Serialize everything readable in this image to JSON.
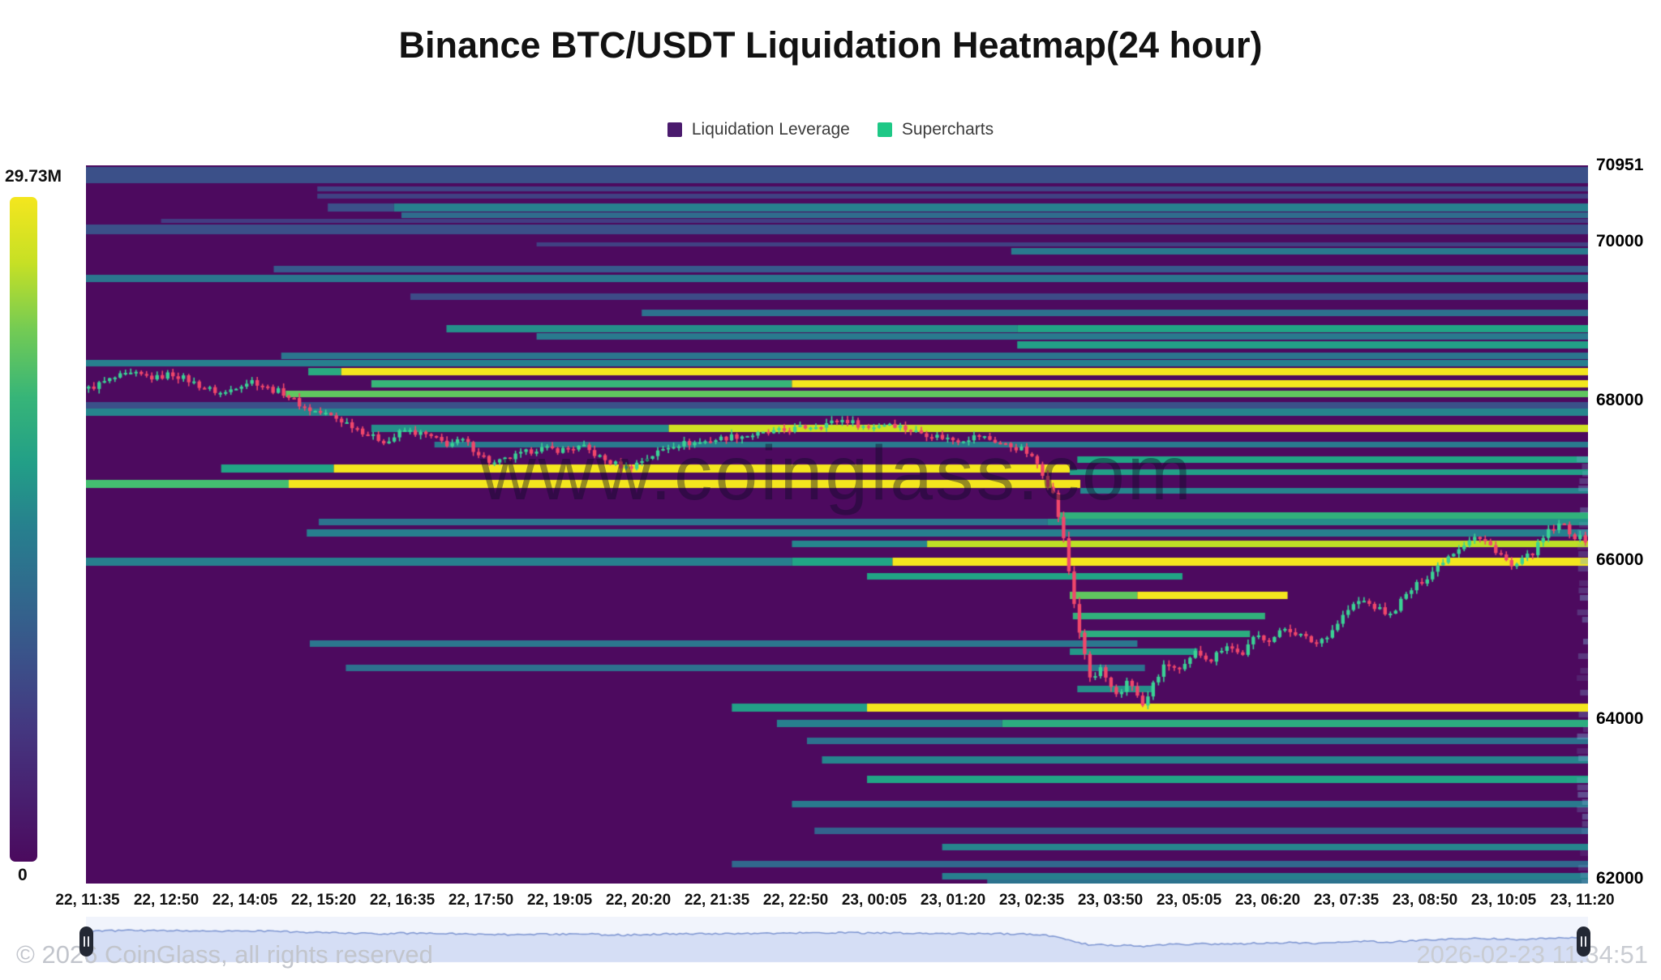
{
  "title": "Binance BTC/USDT Liquidation Heatmap(24 hour)",
  "legend": {
    "items": [
      {
        "label": "Liquidation Leverage",
        "color": "#4a1a6d"
      },
      {
        "label": "Supercharts",
        "color": "#1ec886"
      }
    ]
  },
  "colorbar": {
    "max_label": "29.73M",
    "min_label": "0"
  },
  "watermark": "www.coinglass.com",
  "footer": {
    "copyright": "© 2026 CoinGlass, all rights reserved",
    "timestamp": "2026-02-23 11:34:51"
  },
  "chart_data": {
    "type": "heatmap",
    "title": "Binance BTC/USDT Liquidation Heatmap(24 hour)",
    "x_ticks": [
      "22, 11:35",
      "22, 12:50",
      "22, 14:05",
      "22, 15:20",
      "22, 16:35",
      "22, 17:50",
      "22, 19:05",
      "22, 20:20",
      "22, 21:35",
      "22, 22:50",
      "23, 00:05",
      "23, 01:20",
      "23, 02:35",
      "23, 03:50",
      "23, 05:05",
      "23, 06:20",
      "23, 07:35",
      "23, 08:50",
      "23, 10:05",
      "23, 11:20"
    ],
    "y_ticks": [
      70951,
      70000,
      68000,
      66000,
      64000,
      62000
    ],
    "y_range": [
      61940,
      70951
    ],
    "colorbar_max_millions": 29.73,
    "background_color": "#4d0a5f",
    "colormap_stops": [
      [
        0.0,
        "#4b0a5e"
      ],
      [
        0.18,
        "#46327e"
      ],
      [
        0.35,
        "#365c8d"
      ],
      [
        0.5,
        "#277f8e"
      ],
      [
        0.62,
        "#21a585"
      ],
      [
        0.75,
        "#44bf70"
      ],
      [
        0.88,
        "#bddf26"
      ],
      [
        1.0,
        "#f4e61e"
      ]
    ],
    "candle_up_color": "#3bd295",
    "candle_down_color": "#f1476b",
    "candle_count": 285,
    "bands": [
      {
        "p": 70830,
        "h": 20,
        "s": [
          [
            0,
            0.3
          ]
        ]
      },
      {
        "p": 70660,
        "h": 6,
        "s": [
          [
            0.154,
            0.26
          ]
        ]
      },
      {
        "p": 70560,
        "h": 6,
        "s": [
          [
            0.154,
            0.24
          ]
        ]
      },
      {
        "p": 70420,
        "h": 10,
        "s": [
          [
            0.161,
            0.3
          ],
          [
            0.205,
            0.5
          ]
        ]
      },
      {
        "p": 70330,
        "h": 7,
        "s": [
          [
            0.21,
            0.42
          ]
        ]
      },
      {
        "p": 70250,
        "h": 5,
        "s": [
          [
            0.05,
            0.22
          ]
        ]
      },
      {
        "p": 70150,
        "h": 12,
        "s": [
          [
            0,
            0.3
          ]
        ]
      },
      {
        "p": 69960,
        "h": 5,
        "s": [
          [
            0.3,
            0.24
          ]
        ]
      },
      {
        "p": 69870,
        "h": 8,
        "s": [
          [
            0.616,
            0.48
          ]
        ]
      },
      {
        "p": 69650,
        "h": 8,
        "s": [
          [
            0.125,
            0.34
          ]
        ]
      },
      {
        "p": 69530,
        "h": 9,
        "s": [
          [
            0,
            0.46
          ]
        ]
      },
      {
        "p": 69300,
        "h": 8,
        "s": [
          [
            0.216,
            0.28
          ]
        ]
      },
      {
        "p": 69100,
        "h": 8,
        "s": [
          [
            0.37,
            0.44
          ]
        ]
      },
      {
        "p": 68900,
        "h": 9,
        "s": [
          [
            0.24,
            0.55
          ],
          [
            0.62,
            0.62
          ]
        ]
      },
      {
        "p": 68800,
        "h": 8,
        "s": [
          [
            0.3,
            0.48
          ]
        ]
      },
      {
        "p": 68700,
        "h": 9,
        "s": [
          [
            0.62,
            0.6
          ]
        ]
      },
      {
        "p": 68560,
        "h": 8,
        "s": [
          [
            0.13,
            0.46
          ]
        ]
      },
      {
        "p": 68470,
        "h": 8,
        "s": [
          [
            0,
            0.5
          ]
        ]
      },
      {
        "p": 68360,
        "h": 9,
        "s": [
          [
            0.148,
            0.65
          ],
          [
            0.17,
            1.0
          ]
        ]
      },
      {
        "p": 68210,
        "h": 9,
        "s": [
          [
            0.19,
            0.7
          ],
          [
            0.47,
            1.0
          ]
        ]
      },
      {
        "p": 68080,
        "h": 8,
        "s": [
          [
            0.133,
            0.78
          ]
        ]
      },
      {
        "p": 67940,
        "h": 8,
        "s": [
          [
            0,
            0.3
          ]
        ]
      },
      {
        "p": 67850,
        "h": 9,
        "s": [
          [
            0,
            0.52
          ]
        ]
      },
      {
        "p": 67650,
        "h": 9,
        "s": [
          [
            0.19,
            0.55
          ],
          [
            0.388,
            0.92
          ]
        ]
      },
      {
        "p": 67450,
        "h": 7,
        "s": [
          [
            0.232,
            0.48
          ]
        ]
      },
      {
        "p": 67260,
        "h": 8,
        "s": [
          [
            0.66,
            0.62
          ]
        ]
      },
      {
        "p": 67150,
        "h": 10,
        "s": [
          [
            0.09,
            0.62
          ],
          [
            0.165,
            1.0
          ]
        ],
        "e": 0.655
      },
      {
        "p": 67100,
        "h": 7,
        "s": [
          [
            0.655,
            0.6
          ]
        ]
      },
      {
        "p": 66950,
        "h": 10,
        "s": [
          [
            0,
            0.75
          ],
          [
            0.135,
            1.0
          ]
        ],
        "e": 0.662
      },
      {
        "p": 66870,
        "h": 7,
        "s": [
          [
            0.662,
            0.52
          ]
        ]
      },
      {
        "p": 66550,
        "h": 9,
        "s": [
          [
            0.648,
            0.68
          ]
        ]
      },
      {
        "p": 66480,
        "h": 8,
        "s": [
          [
            0.155,
            0.45
          ],
          [
            0.64,
            0.55
          ]
        ]
      },
      {
        "p": 66340,
        "h": 9,
        "s": [
          [
            0.147,
            0.5
          ]
        ]
      },
      {
        "p": 66200,
        "h": 8,
        "s": [
          [
            0.47,
            0.52
          ],
          [
            0.56,
            0.88
          ]
        ]
      },
      {
        "p": 65980,
        "h": 10,
        "s": [
          [
            0,
            0.5
          ],
          [
            0.47,
            0.62
          ],
          [
            0.537,
            1.0
          ]
        ]
      },
      {
        "p": 65790,
        "h": 8,
        "s": [
          [
            0.52,
            0.62
          ]
        ],
        "e": 0.73
      },
      {
        "p": 65560,
        "h": 9,
        "s": [
          [
            0.655,
            0.78
          ],
          [
            0.7,
            1.0
          ]
        ],
        "e": 0.8
      },
      {
        "p": 65300,
        "h": 8,
        "s": [
          [
            0.657,
            0.68
          ]
        ],
        "e": 0.785
      },
      {
        "p": 65070,
        "h": 8,
        "s": [
          [
            0.662,
            0.66
          ]
        ],
        "e": 0.775
      },
      {
        "p": 64950,
        "h": 8,
        "s": [
          [
            0.149,
            0.46
          ]
        ],
        "e": 0.7
      },
      {
        "p": 64850,
        "h": 8,
        "s": [
          [
            0.655,
            0.58
          ]
        ],
        "e": 0.74
      },
      {
        "p": 64650,
        "h": 8,
        "s": [
          [
            0.173,
            0.44
          ]
        ],
        "e": 0.705
      },
      {
        "p": 64380,
        "h": 8,
        "s": [
          [
            0.66,
            0.55
          ]
        ],
        "e": 0.71
      },
      {
        "p": 64150,
        "h": 10,
        "s": [
          [
            0.43,
            0.6
          ],
          [
            0.52,
            1.0
          ]
        ]
      },
      {
        "p": 63950,
        "h": 9,
        "s": [
          [
            0.46,
            0.5
          ],
          [
            0.61,
            0.66
          ]
        ]
      },
      {
        "p": 63730,
        "h": 8,
        "s": [
          [
            0.48,
            0.44
          ]
        ]
      },
      {
        "p": 63490,
        "h": 9,
        "s": [
          [
            0.49,
            0.52
          ]
        ]
      },
      {
        "p": 63250,
        "h": 9,
        "s": [
          [
            0.52,
            0.62
          ]
        ]
      },
      {
        "p": 62940,
        "h": 8,
        "s": [
          [
            0.47,
            0.48
          ]
        ]
      },
      {
        "p": 62600,
        "h": 8,
        "s": [
          [
            0.485,
            0.38
          ]
        ]
      },
      {
        "p": 62400,
        "h": 8,
        "s": [
          [
            0.57,
            0.52
          ]
        ]
      },
      {
        "p": 62180,
        "h": 8,
        "s": [
          [
            0.43,
            0.4
          ]
        ]
      },
      {
        "p": 62030,
        "h": 8,
        "s": [
          [
            0.57,
            0.5
          ]
        ]
      },
      {
        "p": 61960,
        "h": 7,
        "s": [
          [
            0.6,
            0.45
          ]
        ]
      }
    ],
    "price_path": [
      [
        0.0,
        68150
      ],
      [
        0.01,
        68230
      ],
      [
        0.02,
        68300
      ],
      [
        0.03,
        68330
      ],
      [
        0.045,
        68280
      ],
      [
        0.055,
        68340
      ],
      [
        0.065,
        68270
      ],
      [
        0.075,
        68180
      ],
      [
        0.09,
        68080
      ],
      [
        0.1,
        68200
      ],
      [
        0.11,
        68250
      ],
      [
        0.12,
        68150
      ],
      [
        0.13,
        68100
      ],
      [
        0.145,
        67900
      ],
      [
        0.16,
        67820
      ],
      [
        0.175,
        67700
      ],
      [
        0.19,
        67540
      ],
      [
        0.2,
        67480
      ],
      [
        0.21,
        67630
      ],
      [
        0.225,
        67570
      ],
      [
        0.24,
        67450
      ],
      [
        0.25,
        67500
      ],
      [
        0.26,
        67350
      ],
      [
        0.27,
        67200
      ],
      [
        0.285,
        67300
      ],
      [
        0.3,
        67400
      ],
      [
        0.315,
        67380
      ],
      [
        0.33,
        67420
      ],
      [
        0.345,
        67250
      ],
      [
        0.36,
        67150
      ],
      [
        0.375,
        67300
      ],
      [
        0.39,
        67450
      ],
      [
        0.41,
        67480
      ],
      [
        0.43,
        67550
      ],
      [
        0.45,
        67580
      ],
      [
        0.47,
        67640
      ],
      [
        0.49,
        67700
      ],
      [
        0.505,
        67760
      ],
      [
        0.52,
        67660
      ],
      [
        0.535,
        67720
      ],
      [
        0.55,
        67620
      ],
      [
        0.565,
        67560
      ],
      [
        0.58,
        67500
      ],
      [
        0.595,
        67560
      ],
      [
        0.61,
        67460
      ],
      [
        0.625,
        67380
      ],
      [
        0.635,
        67180
      ],
      [
        0.645,
        66800
      ],
      [
        0.652,
        66200
      ],
      [
        0.658,
        65500
      ],
      [
        0.664,
        64900
      ],
      [
        0.67,
        64450
      ],
      [
        0.676,
        64650
      ],
      [
        0.682,
        64400
      ],
      [
        0.688,
        64250
      ],
      [
        0.695,
        64550
      ],
      [
        0.7,
        64300
      ],
      [
        0.705,
        64150
      ],
      [
        0.712,
        64480
      ],
      [
        0.72,
        64700
      ],
      [
        0.73,
        64600
      ],
      [
        0.74,
        64850
      ],
      [
        0.75,
        64750
      ],
      [
        0.76,
        64950
      ],
      [
        0.77,
        64800
      ],
      [
        0.78,
        65050
      ],
      [
        0.79,
        65000
      ],
      [
        0.8,
        65150
      ],
      [
        0.81,
        65050
      ],
      [
        0.82,
        64950
      ],
      [
        0.83,
        65100
      ],
      [
        0.84,
        65350
      ],
      [
        0.85,
        65500
      ],
      [
        0.86,
        65400
      ],
      [
        0.87,
        65300
      ],
      [
        0.875,
        65450
      ],
      [
        0.885,
        65650
      ],
      [
        0.895,
        65800
      ],
      [
        0.905,
        66000
      ],
      [
        0.915,
        66150
      ],
      [
        0.925,
        66300
      ],
      [
        0.935,
        66200
      ],
      [
        0.945,
        66050
      ],
      [
        0.95,
        65900
      ],
      [
        0.955,
        65950
      ],
      [
        0.965,
        66100
      ],
      [
        0.975,
        66350
      ],
      [
        0.985,
        66450
      ],
      [
        0.992,
        66300
      ],
      [
        1.0,
        66250
      ]
    ]
  },
  "navigator": {
    "strip_bg": "#f1f4fc",
    "area_fill": "#d5def5",
    "line_color": "#7e96d2",
    "handle_color": "#232834"
  }
}
